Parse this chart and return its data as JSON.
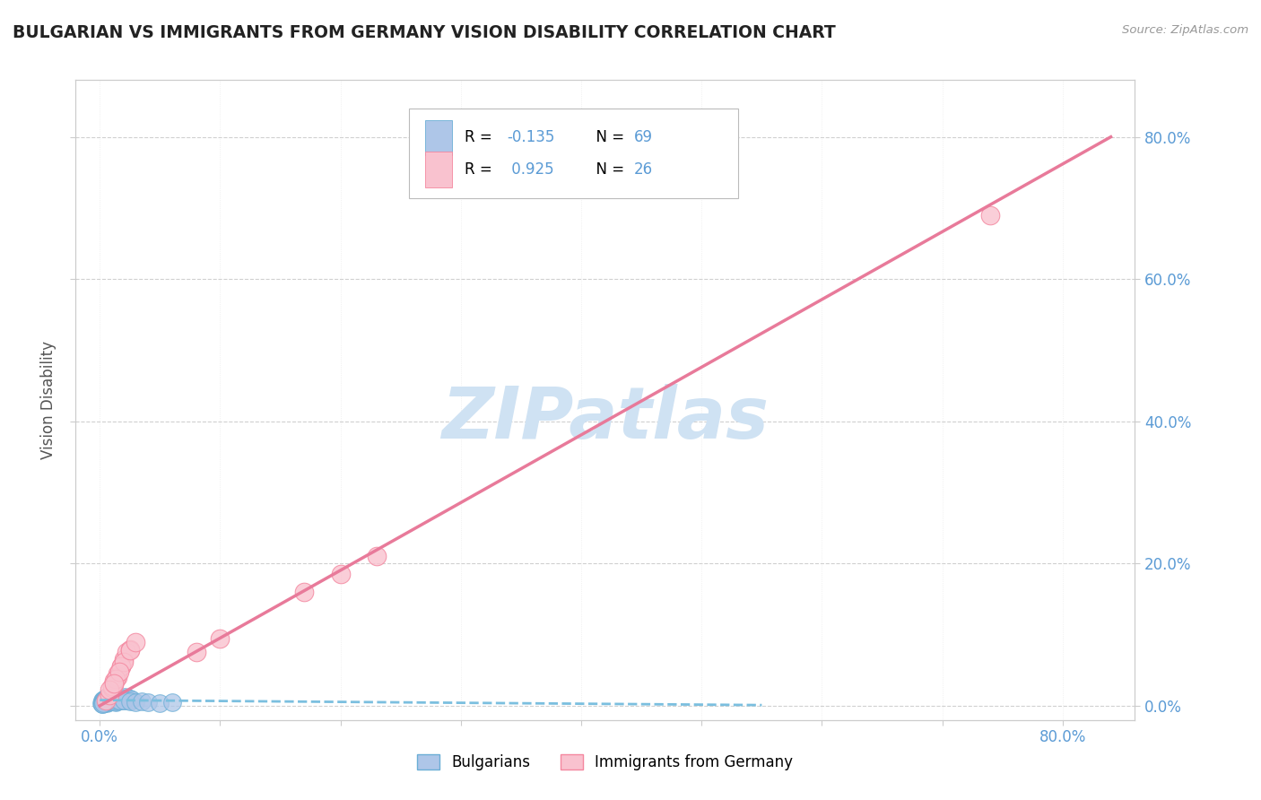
{
  "title": "BULGARIAN VS IMMIGRANTS FROM GERMANY VISION DISABILITY CORRELATION CHART",
  "source_text": "Source: ZipAtlas.com",
  "ylabel_text": "Vision Disability",
  "x_ticks": [
    0.0,
    0.1,
    0.2,
    0.3,
    0.4,
    0.5,
    0.6,
    0.7,
    0.8
  ],
  "y_ticks": [
    0.0,
    0.2,
    0.4,
    0.6,
    0.8
  ],
  "x_tick_labels": [
    "0.0%",
    "",
    "",
    "",
    "",
    "",
    "",
    "",
    "80.0%"
  ],
  "y_tick_labels_right": [
    "0.0%",
    "20.0%",
    "40.0%",
    "60.0%",
    "80.0%"
  ],
  "xlim": [
    -0.02,
    0.86
  ],
  "ylim": [
    -0.02,
    0.88
  ],
  "legend_r1_prefix": "R = ",
  "legend_r1_val": "-0.135",
  "legend_n1": "N = 69",
  "legend_r2_prefix": "R =  ",
  "legend_r2_val": "0.925",
  "legend_n2": "N = 26",
  "color_blue_fill": "#aec6e8",
  "color_blue_edge": "#6baed6",
  "color_pink_fill": "#f9c2cf",
  "color_pink_edge": "#f4879f",
  "color_trend_blue": "#7bbfdf",
  "color_trend_pink": "#e87a9a",
  "color_grid": "#d0d0d0",
  "color_title": "#222222",
  "color_tick_blue": "#5b9bd5",
  "color_watermark": "#cfe2f3",
  "color_source": "#999999",
  "bulgarians_x": [
    0.005,
    0.006,
    0.007,
    0.008,
    0.009,
    0.01,
    0.011,
    0.012,
    0.013,
    0.014,
    0.015,
    0.016,
    0.017,
    0.018,
    0.019,
    0.02,
    0.021,
    0.022,
    0.023,
    0.024,
    0.025,
    0.027,
    0.003,
    0.004,
    0.005,
    0.003,
    0.004,
    0.005,
    0.002,
    0.003,
    0.006,
    0.007,
    0.008,
    0.009,
    0.01,
    0.003,
    0.004,
    0.001,
    0.002,
    0.003,
    0.004,
    0.005,
    0.006,
    0.007,
    0.008,
    0.002,
    0.003,
    0.004,
    0.005,
    0.006,
    0.007,
    0.008,
    0.009,
    0.01,
    0.011,
    0.012,
    0.013,
    0.014,
    0.015,
    0.016,
    0.02,
    0.025,
    0.03,
    0.035,
    0.04,
    0.05,
    0.06,
    0.002,
    0.003
  ],
  "bulgarians_y": [
    0.01,
    0.012,
    0.008,
    0.015,
    0.009,
    0.011,
    0.007,
    0.013,
    0.01,
    0.008,
    0.012,
    0.009,
    0.011,
    0.007,
    0.01,
    0.008,
    0.012,
    0.009,
    0.011,
    0.007,
    0.01,
    0.009,
    0.006,
    0.005,
    0.007,
    0.009,
    0.01,
    0.005,
    0.007,
    0.008,
    0.006,
    0.009,
    0.007,
    0.01,
    0.008,
    0.005,
    0.006,
    0.004,
    0.005,
    0.006,
    0.007,
    0.008,
    0.005,
    0.006,
    0.007,
    0.003,
    0.004,
    0.005,
    0.006,
    0.004,
    0.005,
    0.006,
    0.007,
    0.008,
    0.007,
    0.006,
    0.005,
    0.006,
    0.007,
    0.008,
    0.007,
    0.006,
    0.005,
    0.006,
    0.005,
    0.004,
    0.005,
    0.003,
    0.004
  ],
  "germany_x": [
    0.005,
    0.008,
    0.01,
    0.012,
    0.015,
    0.018,
    0.02,
    0.022,
    0.025,
    0.015,
    0.018,
    0.012,
    0.02,
    0.01,
    0.013,
    0.016,
    0.025,
    0.03,
    0.008,
    0.012,
    0.2,
    0.23,
    0.17,
    0.1,
    0.08,
    0.74
  ],
  "germany_y": [
    0.008,
    0.015,
    0.025,
    0.03,
    0.045,
    0.055,
    0.065,
    0.075,
    0.08,
    0.04,
    0.055,
    0.035,
    0.062,
    0.028,
    0.038,
    0.048,
    0.078,
    0.09,
    0.022,
    0.032,
    0.185,
    0.21,
    0.16,
    0.095,
    0.075,
    0.69
  ],
  "trend_blue_x0": 0.0,
  "trend_blue_x1": 0.55,
  "trend_blue_y0": 0.008,
  "trend_blue_y1": 0.001,
  "trend_pink_x0": 0.0,
  "trend_pink_x1": 0.84,
  "trend_pink_y0": 0.0,
  "trend_pink_y1": 0.8,
  "watermark": "ZIPatlas"
}
